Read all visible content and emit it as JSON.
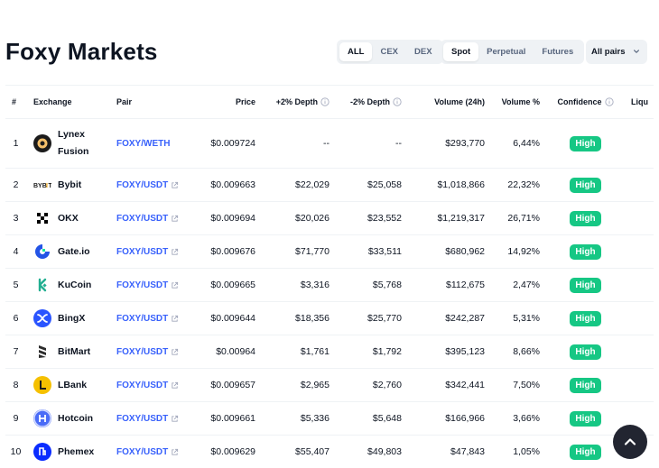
{
  "title": "Foxy Markets",
  "type_filter": {
    "options": [
      "ALL",
      "CEX",
      "DEX"
    ],
    "active": "ALL"
  },
  "market_filter": {
    "options": [
      "Spot",
      "Perpetual",
      "Futures"
    ],
    "active": "Spot"
  },
  "pairs_dropdown": {
    "label": "All pairs"
  },
  "table": {
    "headers": {
      "rank": "#",
      "exchange": "Exchange",
      "pair": "Pair",
      "price": "Price",
      "depth_plus": "+2% Depth",
      "depth_minus": "-2% Depth",
      "volume": "Volume (24h)",
      "volume_pct": "Volume %",
      "confidence": "Confidence",
      "liquidity": "Liqu"
    },
    "rows": [
      {
        "rank": "1",
        "exchange": "Lynex Fusion",
        "logo": "lynex",
        "pair": "FOXY/WETH",
        "external": false,
        "price": "$0.009724",
        "depth_plus": "--",
        "depth_minus": "--",
        "volume": "$293,770",
        "volume_pct": "6,44%",
        "confidence": "High"
      },
      {
        "rank": "2",
        "exchange": "Bybit",
        "logo": "bybit",
        "pair": "FOXY/USDT",
        "external": true,
        "price": "$0.009663",
        "depth_plus": "$22,029",
        "depth_minus": "$25,058",
        "volume": "$1,018,866",
        "volume_pct": "22,32%",
        "confidence": "High"
      },
      {
        "rank": "3",
        "exchange": "OKX",
        "logo": "okx",
        "pair": "FOXY/USDT",
        "external": true,
        "price": "$0.009694",
        "depth_plus": "$20,026",
        "depth_minus": "$23,552",
        "volume": "$1,219,317",
        "volume_pct": "26,71%",
        "confidence": "High"
      },
      {
        "rank": "4",
        "exchange": "Gate.io",
        "logo": "gate",
        "pair": "FOXY/USDT",
        "external": true,
        "price": "$0.009676",
        "depth_plus": "$71,770",
        "depth_minus": "$33,511",
        "volume": "$680,962",
        "volume_pct": "14,92%",
        "confidence": "High"
      },
      {
        "rank": "5",
        "exchange": "KuCoin",
        "logo": "kucoin",
        "pair": "FOXY/USDT",
        "external": true,
        "price": "$0.009665",
        "depth_plus": "$3,316",
        "depth_minus": "$5,768",
        "volume": "$112,675",
        "volume_pct": "2,47%",
        "confidence": "High"
      },
      {
        "rank": "6",
        "exchange": "BingX",
        "logo": "bingx",
        "pair": "FOXY/USDT",
        "external": true,
        "price": "$0.009644",
        "depth_plus": "$18,356",
        "depth_minus": "$25,770",
        "volume": "$242,287",
        "volume_pct": "5,31%",
        "confidence": "High"
      },
      {
        "rank": "7",
        "exchange": "BitMart",
        "logo": "bitmart",
        "pair": "FOXY/USDT",
        "external": true,
        "price": "$0.00964",
        "depth_plus": "$1,761",
        "depth_minus": "$1,792",
        "volume": "$395,123",
        "volume_pct": "8,66%",
        "confidence": "High"
      },
      {
        "rank": "8",
        "exchange": "LBank",
        "logo": "lbank",
        "pair": "FOXY/USDT",
        "external": true,
        "price": "$0.009657",
        "depth_plus": "$2,965",
        "depth_minus": "$2,760",
        "volume": "$342,441",
        "volume_pct": "7,50%",
        "confidence": "High"
      },
      {
        "rank": "9",
        "exchange": "Hotcoin",
        "logo": "hotcoin",
        "pair": "FOXY/USDT",
        "external": true,
        "price": "$0.009661",
        "depth_plus": "$5,336",
        "depth_minus": "$5,648",
        "volume": "$166,966",
        "volume_pct": "3,66%",
        "confidence": "High"
      },
      {
        "rank": "10",
        "exchange": "Phemex",
        "logo": "phemex",
        "pair": "FOXY/USDT",
        "external": true,
        "price": "$0.009629",
        "depth_plus": "$55,407",
        "depth_minus": "$49,803",
        "volume": "$47,843",
        "volume_pct": "1,05%",
        "confidence": "High"
      }
    ]
  },
  "colors": {
    "link": "#3861fb",
    "high_badge": "#16c784",
    "scroll_button": "#222531"
  },
  "icons": {
    "info": "info-circle-icon",
    "external": "external-link-icon",
    "dropdown": "chevron-down-icon",
    "scroll_top": "chevron-up-icon"
  }
}
